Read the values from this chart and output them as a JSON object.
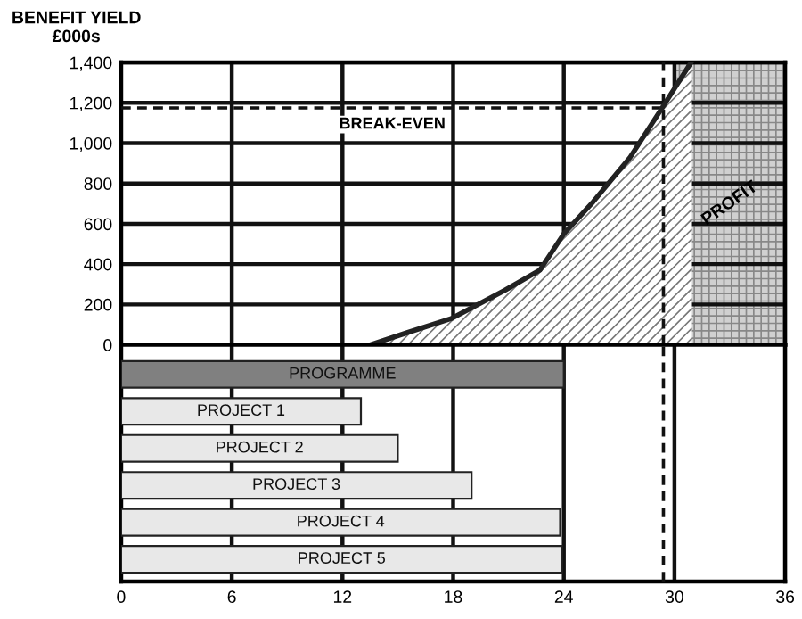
{
  "chart_data": [
    {
      "type": "area",
      "ylabel": "BENEFIT YIELD\n£000s",
      "series": [
        {
          "x": [
            13.5,
            15.5,
            17.9,
            20.8,
            22.7,
            24,
            25.6,
            27.6,
            29.3,
            30.2,
            30.9
          ],
          "values": [
            0,
            60,
            130,
            270,
            370,
            550,
            710,
            930,
            1170,
            1300,
            1400
          ],
          "color": "#222222"
        }
      ],
      "xlim": [
        0,
        36
      ],
      "xticks": [
        0,
        6,
        12,
        18,
        24,
        30,
        36
      ],
      "ylim": [
        0,
        1400
      ],
      "yticks": [
        0,
        {
          "value": 200,
          "label": "200"
        },
        {
          "value": 400,
          "label": "400"
        },
        {
          "value": 600,
          "label": "600"
        },
        {
          "value": 800,
          "label": "800"
        },
        {
          "value": 1000,
          "label": "1,000"
        },
        {
          "value": 1200,
          "label": "1,200"
        },
        {
          "value": 1400,
          "label": "1,400"
        }
      ],
      "ref_lines": [
        {
          "axis": "y",
          "value": 1175,
          "label": "BREAK-EVEN",
          "line_style": "dashed",
          "color": "#111111"
        },
        {
          "axis": "x",
          "value": 29.4,
          "label": null,
          "line_style": "dashed",
          "color": "#111111"
        }
      ],
      "bands": [
        {
          "axis": "x",
          "from": 30,
          "to": 36,
          "label": "PROFIT",
          "color": "#d0d0d0"
        }
      ],
      "grid": true,
      "tick_labels": "y"
    },
    {
      "type": "bar",
      "orientation": "horizontal",
      "categories": [
        "PROGRAMME",
        "PROJECT 1",
        "PROJECT 2",
        "PROJECT 3",
        "PROJECT 4",
        "PROJECT 5"
      ],
      "base": [
        0,
        0,
        0,
        0,
        0,
        0
      ],
      "values": [
        24,
        13,
        15,
        19,
        23.8,
        23.9
      ],
      "colors": [
        "#808080",
        "#e8e8e8",
        "#e8e8e8",
        "#e8e8e8",
        "#e8e8e8",
        "#e8e8e8"
      ],
      "xlim": [
        0,
        36
      ],
      "xticks": [
        0,
        6,
        12,
        18,
        24,
        30,
        36
      ],
      "ref_lines": [
        {
          "axis": "x",
          "value": 29.4,
          "label": null,
          "line_style": "dashed",
          "color": "#111111"
        }
      ],
      "grid": "x",
      "tick_labels": "x"
    }
  ]
}
